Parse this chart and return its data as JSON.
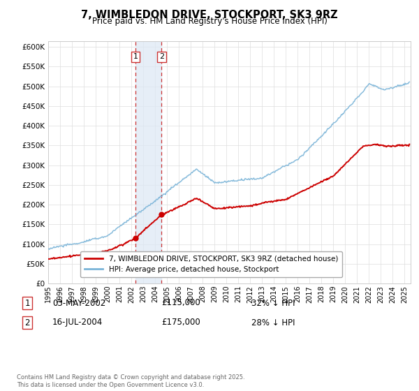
{
  "title": "7, WIMBLEDON DRIVE, STOCKPORT, SK3 9RZ",
  "subtitle": "Price paid vs. HM Land Registry's House Price Index (HPI)",
  "ylabel_ticks": [
    "£0",
    "£50K",
    "£100K",
    "£150K",
    "£200K",
    "£250K",
    "£300K",
    "£350K",
    "£400K",
    "£450K",
    "£500K",
    "£550K",
    "£600K"
  ],
  "ytick_values": [
    0,
    50000,
    100000,
    150000,
    200000,
    250000,
    300000,
    350000,
    400000,
    450000,
    500000,
    550000,
    600000
  ],
  "ylim": [
    0,
    615000
  ],
  "xlim_start": 1995.0,
  "xlim_end": 2025.5,
  "hpi_color": "#7ab4d8",
  "price_color": "#cc0000",
  "shading_color": "#dce8f5",
  "transaction1": {
    "label": "1",
    "date": "03-MAY-2002",
    "price": 115000,
    "pct": "32% ↓ HPI",
    "x": 2002.34
  },
  "transaction2": {
    "label": "2",
    "date": "16-JUL-2004",
    "price": 175000,
    "pct": "28% ↓ HPI",
    "x": 2004.54
  },
  "legend_property": "7, WIMBLEDON DRIVE, STOCKPORT, SK3 9RZ (detached house)",
  "legend_hpi": "HPI: Average price, detached house, Stockport",
  "footnote": "Contains HM Land Registry data © Crown copyright and database right 2025.\nThis data is licensed under the Open Government Licence v3.0.",
  "xtick_years": [
    1995,
    1996,
    1997,
    1998,
    1999,
    2000,
    2001,
    2002,
    2003,
    2004,
    2005,
    2006,
    2007,
    2008,
    2009,
    2010,
    2011,
    2012,
    2013,
    2014,
    2015,
    2016,
    2017,
    2018,
    2019,
    2020,
    2021,
    2022,
    2023,
    2024,
    2025
  ]
}
